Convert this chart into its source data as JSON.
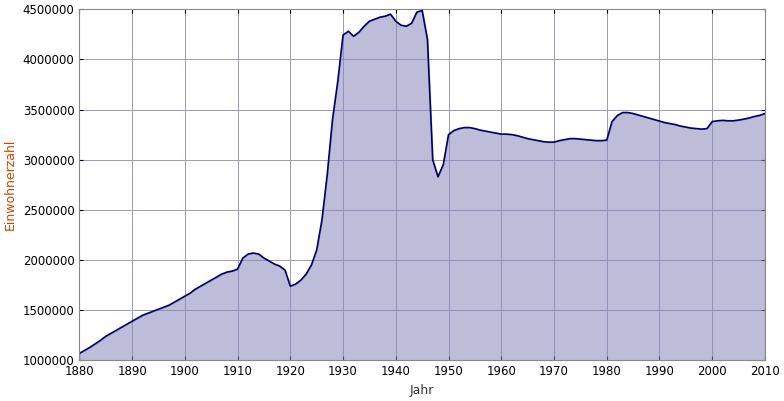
{
  "years": [
    1880,
    1881,
    1882,
    1883,
    1884,
    1885,
    1886,
    1887,
    1888,
    1889,
    1890,
    1891,
    1892,
    1893,
    1894,
    1895,
    1896,
    1897,
    1898,
    1899,
    1900,
    1901,
    1902,
    1903,
    1904,
    1905,
    1906,
    1907,
    1908,
    1909,
    1910,
    1911,
    1912,
    1913,
    1914,
    1915,
    1916,
    1917,
    1918,
    1919,
    1920,
    1921,
    1922,
    1923,
    1924,
    1925,
    1926,
    1927,
    1928,
    1929,
    1930,
    1931,
    1932,
    1933,
    1934,
    1935,
    1936,
    1937,
    1938,
    1939,
    1940,
    1941,
    1942,
    1943,
    1944,
    1945,
    1946,
    1947,
    1948,
    1949,
    1950,
    1951,
    1952,
    1953,
    1954,
    1955,
    1956,
    1957,
    1958,
    1959,
    1960,
    1961,
    1962,
    1963,
    1964,
    1965,
    1966,
    1967,
    1968,
    1969,
    1970,
    1971,
    1972,
    1973,
    1974,
    1975,
    1976,
    1977,
    1978,
    1979,
    1980,
    1981,
    1982,
    1983,
    1984,
    1985,
    1986,
    1987,
    1988,
    1989,
    1990,
    1991,
    1992,
    1993,
    1994,
    1995,
    1996,
    1997,
    1998,
    1999,
    2000,
    2001,
    2002,
    2003,
    2004,
    2005,
    2006,
    2007,
    2008,
    2009,
    2010
  ],
  "population": [
    1070000,
    1100000,
    1130000,
    1165000,
    1200000,
    1240000,
    1270000,
    1300000,
    1330000,
    1360000,
    1390000,
    1420000,
    1450000,
    1470000,
    1490000,
    1510000,
    1530000,
    1550000,
    1580000,
    1610000,
    1640000,
    1670000,
    1710000,
    1740000,
    1770000,
    1800000,
    1830000,
    1860000,
    1880000,
    1890000,
    1910000,
    2020000,
    2060000,
    2070000,
    2060000,
    2020000,
    1990000,
    1960000,
    1940000,
    1900000,
    1740000,
    1760000,
    1800000,
    1860000,
    1950000,
    2100000,
    2400000,
    2850000,
    3400000,
    3780000,
    4242000,
    4280000,
    4230000,
    4270000,
    4330000,
    4380000,
    4400000,
    4420000,
    4430000,
    4450000,
    4380000,
    4340000,
    4330000,
    4360000,
    4470000,
    4488000,
    4200000,
    3000000,
    2830000,
    2950000,
    3250000,
    3290000,
    3310000,
    3320000,
    3320000,
    3310000,
    3295000,
    3285000,
    3275000,
    3265000,
    3255000,
    3255000,
    3250000,
    3240000,
    3225000,
    3210000,
    3200000,
    3190000,
    3180000,
    3175000,
    3175000,
    3190000,
    3200000,
    3210000,
    3210000,
    3205000,
    3200000,
    3195000,
    3190000,
    3190000,
    3195000,
    3380000,
    3440000,
    3470000,
    3470000,
    3460000,
    3445000,
    3430000,
    3415000,
    3400000,
    3385000,
    3370000,
    3360000,
    3350000,
    3335000,
    3325000,
    3315000,
    3310000,
    3305000,
    3310000,
    3380000,
    3388000,
    3392000,
    3388000,
    3388000,
    3395000,
    3404000,
    3416000,
    3431000,
    3442000,
    3460000
  ],
  "fill_color": "#8888bb",
  "fill_alpha": 0.55,
  "line_color": "#000066",
  "line_width": 1.2,
  "ylabel": "Einwohnerzahl",
  "xlabel": "Jahr",
  "ylim": [
    1000000,
    4500000
  ],
  "xlim": [
    1880,
    2010
  ],
  "yticks": [
    1000000,
    1500000,
    2000000,
    2500000,
    3000000,
    3500000,
    4000000,
    4500000
  ],
  "xticks": [
    1880,
    1890,
    1900,
    1910,
    1920,
    1930,
    1940,
    1950,
    1960,
    1970,
    1980,
    1990,
    2000,
    2010
  ],
  "background_color": "#ffffff",
  "grid_color": "#9999bb",
  "ylabel_color": "#cc4400",
  "xlabel_color": "#333333",
  "tick_label_color": "#000000",
  "tick_label_size": 8.5,
  "ylabel_size": 9,
  "xlabel_size": 9
}
